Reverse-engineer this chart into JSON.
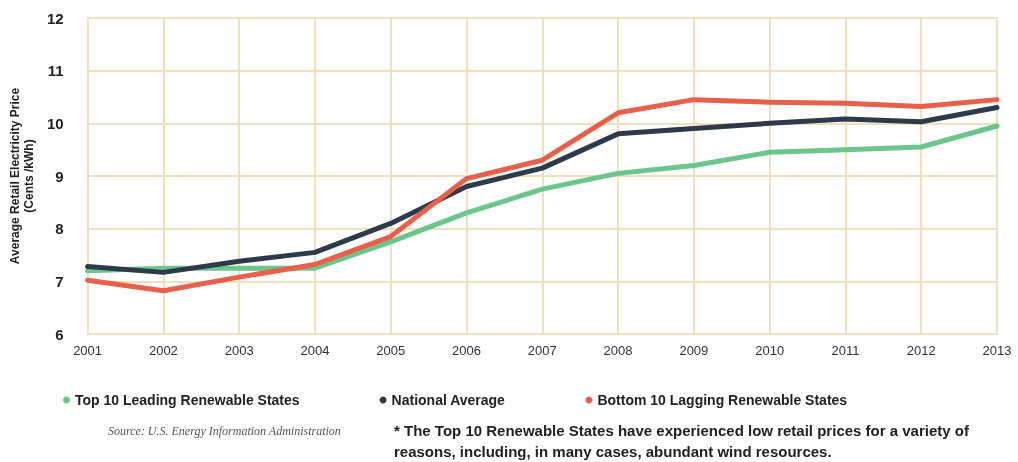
{
  "chart_data": {
    "type": "line",
    "ylabel": "Average Retail Electricity Price\n(Cents /kWh)",
    "categories": [
      "2001",
      "2002",
      "2003",
      "2004",
      "2005",
      "2006",
      "2007",
      "2008",
      "2009",
      "2010",
      "2011",
      "2012",
      "2013"
    ],
    "series": [
      {
        "name": "Top 10 Leading Renewable States",
        "color": "#6cc58c",
        "values": [
          7.2,
          7.25,
          7.25,
          7.25,
          7.75,
          8.3,
          8.75,
          9.05,
          9.2,
          9.45,
          9.5,
          9.55,
          9.95
        ]
      },
      {
        "name": "National Average",
        "color": "#2d3a4a",
        "values": [
          7.28,
          7.17,
          7.38,
          7.55,
          8.1,
          8.8,
          9.15,
          9.8,
          9.9,
          10.0,
          10.08,
          10.03,
          10.3
        ]
      },
      {
        "name": "Bottom 10 Lagging Renewable States",
        "color": "#e8604a",
        "values": [
          7.02,
          6.82,
          7.08,
          7.32,
          7.85,
          8.95,
          9.3,
          10.2,
          10.45,
          10.4,
          10.38,
          10.32,
          10.45
        ]
      }
    ],
    "ylim": [
      6,
      12
    ],
    "yticks": [
      6,
      7,
      8,
      9,
      10,
      11,
      12
    ],
    "grid": true,
    "legend": "bottom",
    "marker": "none",
    "line_style": "solid",
    "annotations": [
      "Source: U.S. Energy Information Administration",
      "* The Top 10 Renewable States have experienced low retail prices for a variety of reasons, including, in many cases, abundant wind resources."
    ]
  }
}
